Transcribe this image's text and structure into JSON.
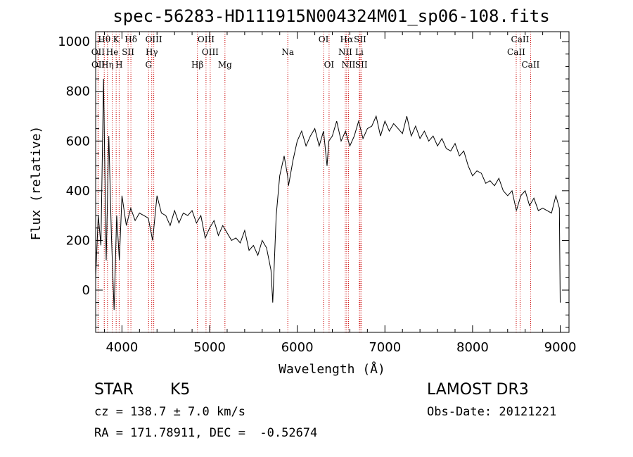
{
  "chart_data": {
    "type": "line",
    "title": "spec-56283-HD111915N004324M01_sp06-108.fits",
    "xlabel": "Wavelength (Å)",
    "ylabel": "Flux (relative)",
    "xlim": [
      3700,
      9100
    ],
    "ylim": [
      -170,
      1040
    ],
    "xticks": [
      4000,
      5000,
      6000,
      7000,
      8000,
      9000
    ],
    "yticks": [
      0,
      200,
      400,
      600,
      800,
      1000
    ],
    "grid": false,
    "series": [
      {
        "x": [
          3700,
          3730,
          3760,
          3790,
          3820,
          3850,
          3880,
          3910,
          3940,
          3970,
          4000,
          4050,
          4100,
          4150,
          4200,
          4250,
          4300,
          4350,
          4400,
          4450,
          4500,
          4550,
          4600,
          4650,
          4700,
          4750,
          4800,
          4850,
          4900,
          4950,
          5000,
          5050,
          5100,
          5150,
          5200,
          5250,
          5300,
          5350,
          5400,
          5450,
          5500,
          5550,
          5600,
          5650,
          5700,
          5720,
          5760,
          5800,
          5850,
          5890,
          5900,
          5950,
          6000,
          6050,
          6100,
          6150,
          6200,
          6250,
          6300,
          6340,
          6360,
          6400,
          6450,
          6500,
          6550,
          6600,
          6650,
          6700,
          6750,
          6800,
          6850,
          6900,
          6950,
          7000,
          7050,
          7100,
          7150,
          7200,
          7250,
          7300,
          7350,
          7400,
          7450,
          7500,
          7550,
          7600,
          7650,
          7700,
          7750,
          7800,
          7850,
          7900,
          7950,
          8000,
          8050,
          8100,
          8150,
          8200,
          8250,
          8300,
          8350,
          8400,
          8450,
          8500,
          8550,
          8600,
          8650,
          8700,
          8750,
          8800,
          8850,
          8900,
          8950,
          8990,
          9000
        ],
        "values": [
          50,
          300,
          180,
          850,
          120,
          620,
          220,
          -80,
          300,
          120,
          380,
          260,
          330,
          280,
          310,
          300,
          290,
          200,
          380,
          310,
          300,
          260,
          320,
          270,
          310,
          300,
          320,
          270,
          300,
          210,
          250,
          280,
          220,
          260,
          230,
          200,
          210,
          190,
          240,
          160,
          180,
          140,
          200,
          170,
          80,
          -50,
          300,
          460,
          540,
          460,
          420,
          520,
          600,
          640,
          580,
          620,
          650,
          580,
          640,
          500,
          600,
          620,
          680,
          600,
          640,
          580,
          620,
          680,
          610,
          650,
          660,
          700,
          620,
          680,
          640,
          670,
          650,
          630,
          700,
          620,
          660,
          610,
          640,
          600,
          620,
          580,
          610,
          570,
          560,
          590,
          540,
          560,
          500,
          460,
          480,
          470,
          430,
          440,
          420,
          450,
          400,
          380,
          400,
          320,
          380,
          400,
          340,
          370,
          320,
          330,
          320,
          310,
          380,
          330,
          -50
        ]
      }
    ],
    "spectral_lines": [
      {
        "label": "Hθ",
        "x": 3798,
        "row": 1
      },
      {
        "label": "OII",
        "x": 3727,
        "row": 2
      },
      {
        "label": "OII",
        "x": 3729,
        "row": 3
      },
      {
        "label": "He",
        "x": 3889,
        "row": 2
      },
      {
        "label": "Hη",
        "x": 3835,
        "row": 3
      },
      {
        "label": "K",
        "x": 3934,
        "row": 1
      },
      {
        "label": "SII",
        "x": 4070,
        "row": 2
      },
      {
        "label": "H",
        "x": 3968,
        "row": 3
      },
      {
        "label": "Hδ",
        "x": 4102,
        "row": 1
      },
      {
        "label": "OIII",
        "x": 4363,
        "row": 1
      },
      {
        "label": "Hγ",
        "x": 4340,
        "row": 2
      },
      {
        "label": "G",
        "x": 4304,
        "row": 3
      },
      {
        "label": "OIII",
        "x": 4959,
        "row": 1
      },
      {
        "label": "OIII",
        "x": 5007,
        "row": 2
      },
      {
        "label": "Hβ",
        "x": 4861,
        "row": 3
      },
      {
        "label": "Mg",
        "x": 5175,
        "row": 3
      },
      {
        "label": "Na",
        "x": 5892,
        "row": 2
      },
      {
        "label": "OI",
        "x": 6300,
        "row": 1
      },
      {
        "label": "OI",
        "x": 6363,
        "row": 3
      },
      {
        "label": "Hα",
        "x": 6563,
        "row": 1
      },
      {
        "label": "NII",
        "x": 6548,
        "row": 2
      },
      {
        "label": "NII",
        "x": 6584,
        "row": 3
      },
      {
        "label": "SII",
        "x": 6717,
        "row": 1
      },
      {
        "label": "Li",
        "x": 6708,
        "row": 2
      },
      {
        "label": "SII",
        "x": 6731,
        "row": 3
      },
      {
        "label": "CaII",
        "x": 8542,
        "row": 1
      },
      {
        "label": "CaII",
        "x": 8498,
        "row": 2
      },
      {
        "label": "CaII",
        "x": 8662,
        "row": 3
      }
    ],
    "line_color": "#000000",
    "marker_color": "#cc0000"
  },
  "info": {
    "class_label": "STAR",
    "subclass": "K5",
    "survey": "LAMOST DR3",
    "cz": "cz = 138.7 ± 7.0 km/s",
    "obs_date": "Obs-Date: 20121221",
    "coords": "RA = 171.78911, DEC =  -0.52674"
  }
}
